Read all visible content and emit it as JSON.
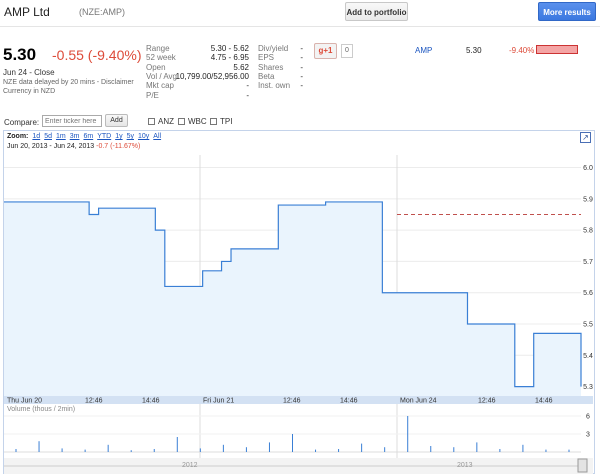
{
  "header": {
    "company": "AMP Ltd",
    "ticker": "(NZE:AMP)",
    "add_portfolio": "Add to portfolio",
    "more_results": "More results"
  },
  "quote": {
    "price": "5.30",
    "change": "-0.55 (-9.40%)",
    "date_line": "Jun 24 - Close",
    "delay_line": "NZE data delayed by 20 mins - Disclaimer",
    "currency_line": "Currency in NZD"
  },
  "stats_left": [
    {
      "label": "Range",
      "value": "5.30 - 5.62"
    },
    {
      "label": "52 week",
      "value": "4.75 - 6.95"
    },
    {
      "label": "Open",
      "value": "5.62"
    },
    {
      "label": "Vol / Avg.",
      "value": "10,799.00/52,956.00"
    },
    {
      "label": "Mkt cap",
      "value": "-"
    },
    {
      "label": "P/E",
      "value": "-"
    }
  ],
  "stats_right": [
    {
      "label": "Div/yield",
      "value": "-"
    },
    {
      "label": "EPS",
      "value": "-"
    },
    {
      "label": "Shares",
      "value": "-"
    },
    {
      "label": "Beta",
      "value": "-"
    },
    {
      "label": "Inst. own",
      "value": "-"
    }
  ],
  "social": {
    "plus_label": "+1",
    "count": "0"
  },
  "comparison": {
    "symbol": "AMP",
    "price": "5.30",
    "change": "-9.40%",
    "change_fraction": 0.094
  },
  "compare": {
    "label": "Compare:",
    "placeholder": "Enter ticker here",
    "add_label": "Add",
    "checkboxes": [
      "ANZ",
      "WBC",
      "TPI"
    ]
  },
  "zoom": {
    "label": "Zoom:",
    "options": [
      "1d",
      "5d",
      "1m",
      "3m",
      "6m",
      "YTD",
      "1y",
      "5y",
      "10y",
      "All"
    ]
  },
  "range_text": "Jun 20, 2013  -  Jun 24, 2013",
  "range_change": "-0.7 (-11.67%)",
  "colors": {
    "accent": "#3b78e0",
    "negative": "#dd4b39",
    "line": "#3a7fd5",
    "fill": "#eaf4fd",
    "prev_close": "#c0504d"
  },
  "chart_data": {
    "type": "line",
    "x_labels": [
      "Thu Jun 20",
      "12:46",
      "14:46",
      "Fri Jun 21",
      "12:46",
      "14:46",
      "Mon Jun 24",
      "12:46",
      "14:46"
    ],
    "y_ticks": [
      5.3,
      5.4,
      5.5,
      5.6,
      5.7,
      5.8,
      5.9,
      6.0
    ],
    "ylim": [
      5.27,
      6.04
    ],
    "previous_close": 5.85,
    "series": [
      {
        "name": "",
        "values": [
          5.89,
          5.89,
          5.89,
          5.89,
          5.89,
          5.89,
          5.89,
          5.89,
          5.89,
          5.85,
          5.87,
          5.87,
          5.87,
          5.87,
          5.87,
          5.87,
          5.8,
          5.62,
          5.62,
          5.62,
          5.62,
          5.67,
          5.67,
          5.7,
          5.74,
          5.74,
          5.74,
          5.74,
          5.74,
          5.88,
          5.88,
          5.88,
          5.88,
          5.88,
          5.89,
          5.89,
          5.89,
          5.89,
          5.89,
          5.89,
          5.6,
          5.6,
          5.6,
          5.6,
          5.6,
          5.6,
          5.6,
          5.6,
          5.6,
          5.5,
          5.5,
          5.5,
          5.5,
          5.5,
          5.3,
          5.3,
          5.47,
          5.47,
          5.47,
          5.47,
          5.47,
          5.3
        ]
      }
    ],
    "volume_ticks": [
      3,
      6
    ],
    "volume_label": "Volume (thous / 2min)",
    "volume": [
      0.5,
      1.8,
      0.6,
      0.4,
      1.2,
      0.3,
      0.5,
      2.5,
      0.6,
      1.2,
      0.8,
      1.6,
      3.0,
      0.4,
      0.5,
      1.4,
      0.8,
      6.0,
      1.0,
      0.8,
      1.6,
      0.5,
      1.2,
      0.4,
      0.4
    ],
    "nav_labels": [
      "2012",
      "2013"
    ]
  }
}
